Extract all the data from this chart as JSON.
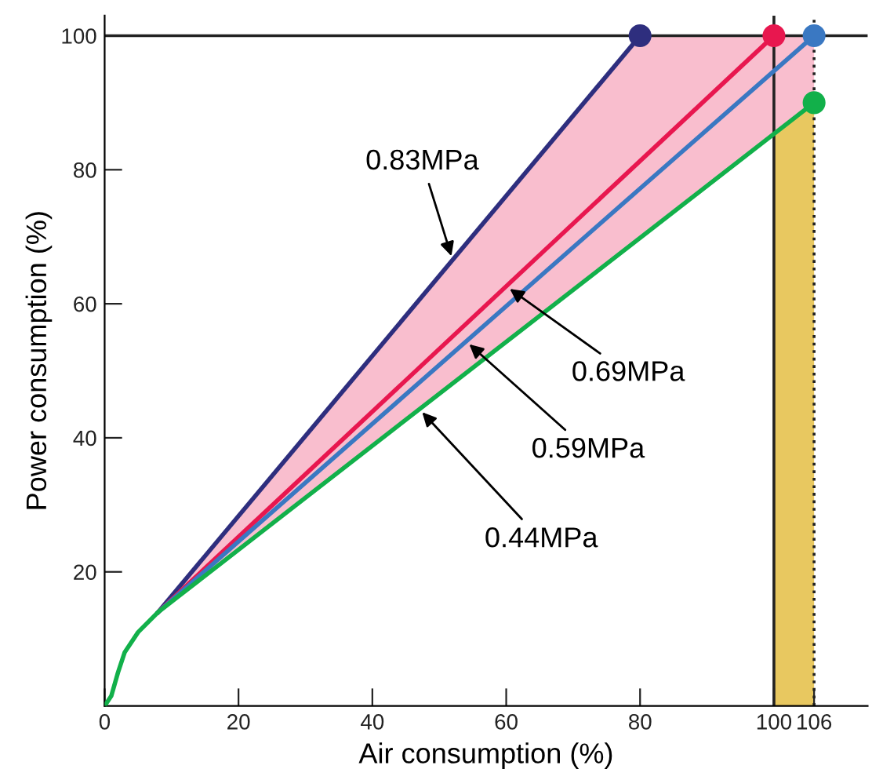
{
  "chart_data": {
    "type": "line",
    "xlabel": "Air consumption (%)",
    "ylabel": "Power consumption (%)",
    "xlim": [
      0,
      114
    ],
    "ylim": [
      0,
      103
    ],
    "xticks": [
      0,
      20,
      40,
      60,
      80,
      100,
      106
    ],
    "yticks": [
      20,
      40,
      60,
      80,
      100
    ],
    "grid": false,
    "line_style": "solid",
    "series": [
      {
        "color": "#2e2e7e",
        "x": [
          8,
          80
        ],
        "values": [
          14,
          100
        ]
      },
      {
        "color": "#e8174f",
        "x": [
          8,
          100
        ],
        "values": [
          14,
          100
        ]
      },
      {
        "color": "#3a78c2",
        "x": [
          8,
          80,
          106
        ],
        "values": [
          14,
          77.2,
          100
        ],
        "lower": [
          14,
          69.8,
          90
        ],
        "upper": [
          14,
          100,
          100
        ]
      },
      {
        "color": "#12b04a",
        "x": [
          0,
          1,
          2,
          3,
          5,
          8,
          106
        ],
        "values": [
          0,
          1.5,
          5,
          8,
          11,
          14,
          90
        ]
      },
      {
        "type": "area",
        "color": "#e8c860",
        "x": [
          100,
          106
        ],
        "values": [
          85.3,
          90
        ]
      },
      {
        "type": "scatter",
        "marker": "circle",
        "x": [
          80,
          100,
          106,
          106
        ],
        "values": [
          100,
          100,
          100,
          90
        ],
        "colors": [
          "#2e2e7e",
          "#e8174f",
          "#3a78c2",
          "#12b04a"
        ]
      }
    ],
    "ref_lines": [
      {
        "axis": "y",
        "value": 100,
        "color": "#222222",
        "line_style": "solid"
      },
      {
        "axis": "x",
        "value": 100,
        "color": "#222222",
        "line_style": "solid"
      },
      {
        "axis": "x",
        "value": 106,
        "color": "#222222",
        "line_style": "dotted"
      }
    ],
    "annotations": [
      {
        "text": "0.83MPa",
        "x": 52,
        "y": 66.5
      },
      {
        "text": "0.69MPa",
        "x": 60,
        "y": 62.6
      },
      {
        "text": "0.59MPa",
        "x": 54,
        "y": 54.4
      },
      {
        "text": "0.44MPa",
        "x": 47,
        "y": 44.3
      }
    ]
  }
}
